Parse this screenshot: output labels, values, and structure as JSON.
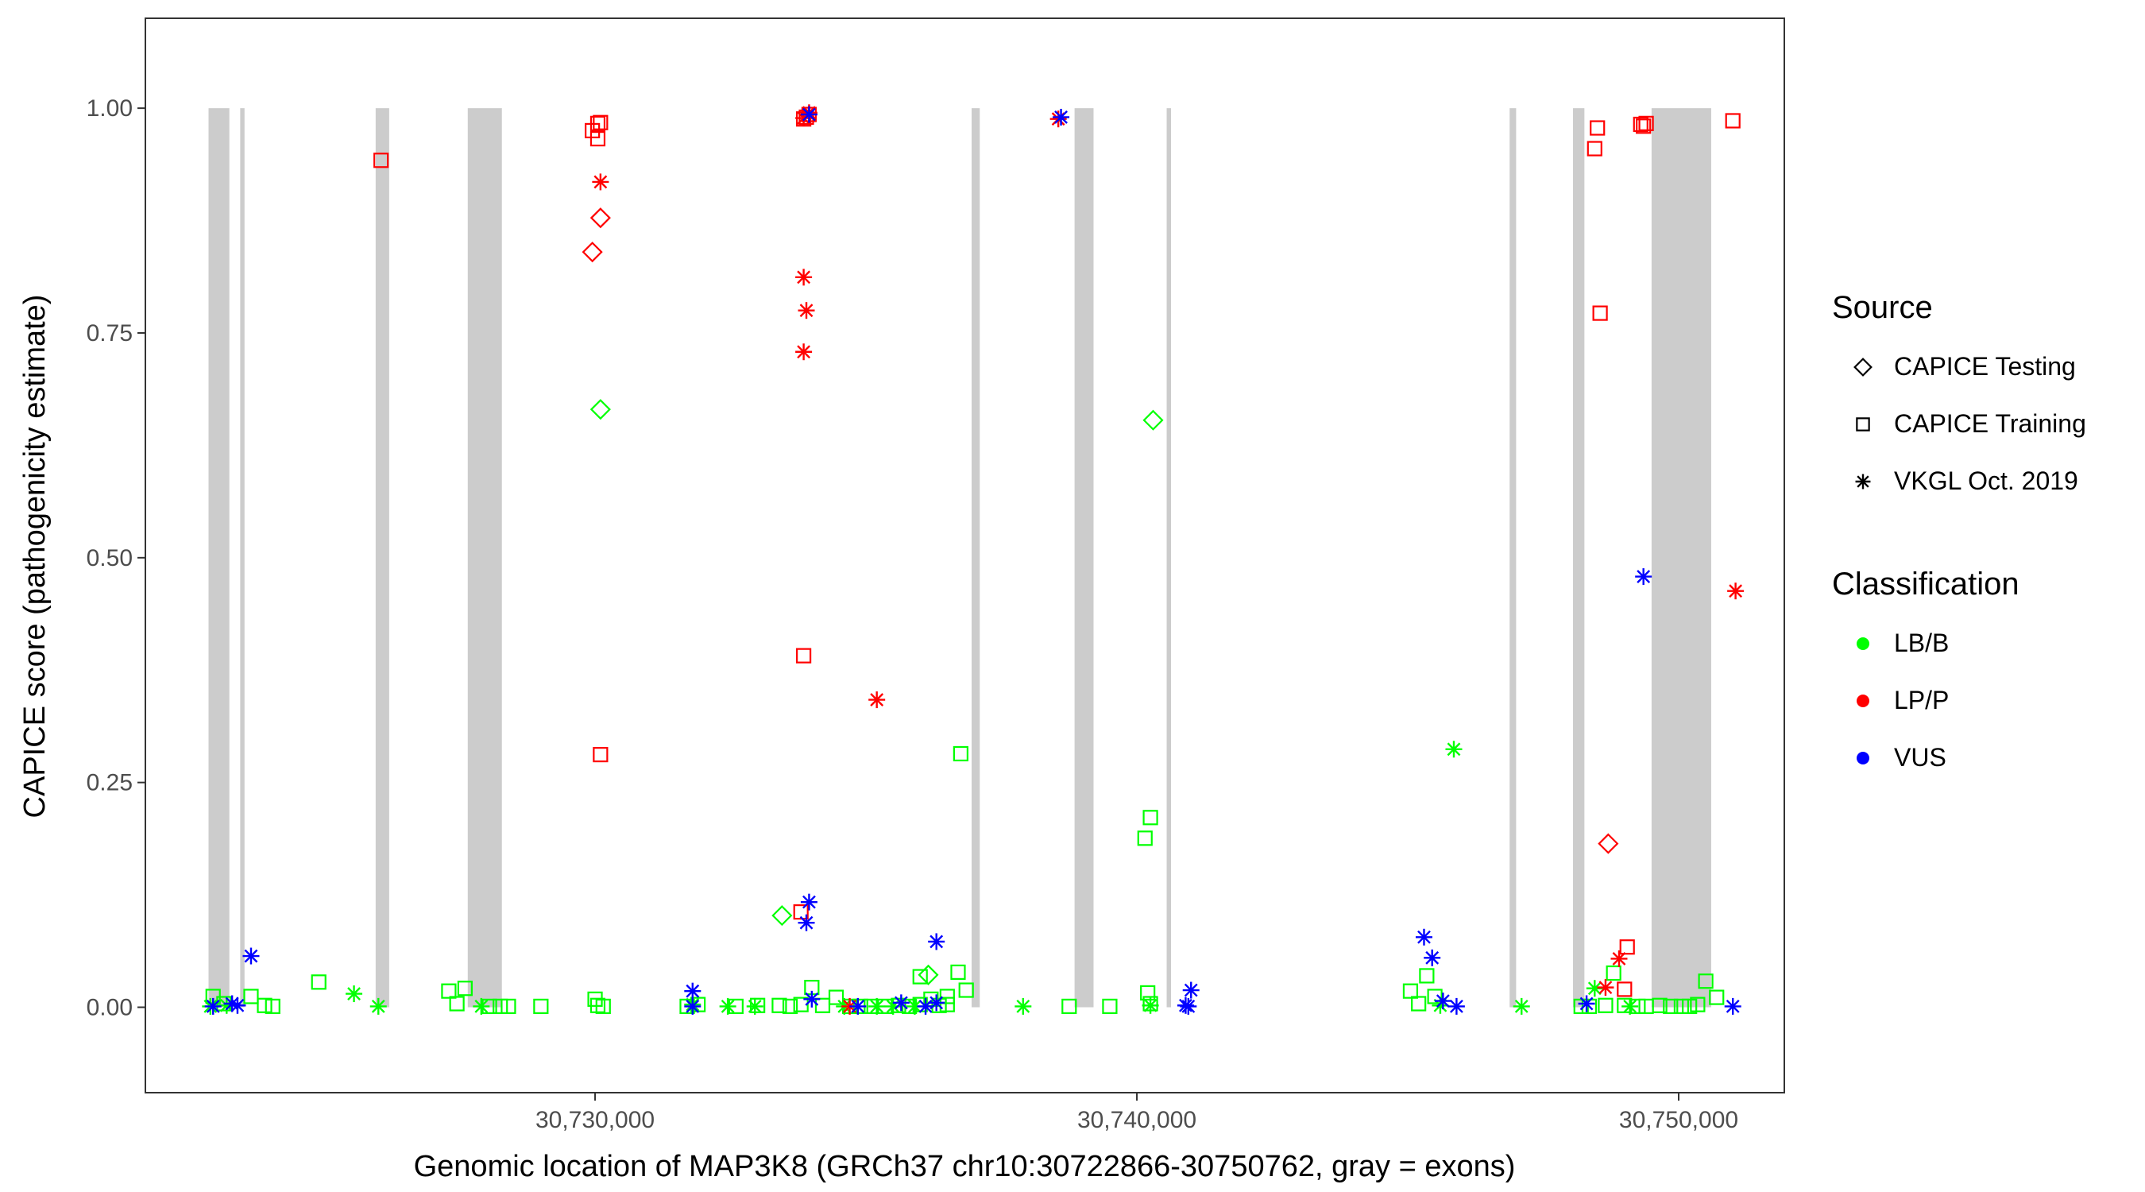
{
  "chart_data": {
    "type": "scatter",
    "title": "",
    "xlabel": "Genomic location of MAP3K8 (GRCh37 chr10:30722866-30750762, gray = exons)",
    "ylabel": "CAPICE score (pathogenicity estimate)",
    "xlim": [
      30721700,
      30751950
    ],
    "ylim": [
      -0.095,
      1.1
    ],
    "x_ticks": [
      {
        "value": 30730000,
        "label": "30,730,000"
      },
      {
        "value": 30740000,
        "label": "30,740,000"
      },
      {
        "value": 30750000,
        "label": "30,750,000"
      }
    ],
    "y_ticks": [
      {
        "value": 0,
        "label": "0.00"
      },
      {
        "value": 0.25,
        "label": "0.25"
      },
      {
        "value": 0.5,
        "label": "0.50"
      },
      {
        "value": 0.75,
        "label": "0.75"
      },
      {
        "value": 1,
        "label": "1.00"
      }
    ],
    "grid": false,
    "legend_position": "right",
    "exons": [
      [
        30722866,
        30723250
      ],
      [
        30723450,
        30723530
      ],
      [
        30725950,
        30726200
      ],
      [
        30727650,
        30728280
      ],
      [
        30736950,
        30737100
      ],
      [
        30738850,
        30739200
      ],
      [
        30740550,
        30740630
      ],
      [
        30746880,
        30747000
      ],
      [
        30748050,
        30748260
      ],
      [
        30749500,
        30750600
      ]
    ],
    "legends": [
      {
        "title": "Source",
        "entries": [
          {
            "label": "CAPICE Testing",
            "shape": "diamond"
          },
          {
            "label": "CAPICE Training",
            "shape": "square"
          },
          {
            "label": "VKGL Oct. 2019",
            "shape": "asterisk"
          }
        ]
      },
      {
        "title": "Classification",
        "entries": [
          {
            "label": "LB/B",
            "color": "#00ff00"
          },
          {
            "label": "LP/P",
            "color": "#ff0000"
          },
          {
            "label": "VUS",
            "color": "#0000ff"
          }
        ]
      }
    ],
    "colors": {
      "LB/B": "#00ff00",
      "LP/P": "#ff0000",
      "VUS": "#0000ff",
      "exon": "#cccccc"
    },
    "series": [
      {
        "name": "CAPICE Testing",
        "classification": "LB/B",
        "shape": "diamond",
        "points": [
          [
            30730100,
            0.665
          ],
          [
            30733450,
            0.102
          ],
          [
            30740300,
            0.653
          ],
          [
            30736150,
            0.036
          ]
        ]
      },
      {
        "name": "CAPICE Testing",
        "classification": "LP/P",
        "shape": "diamond",
        "points": [
          [
            30729950,
            0.84
          ],
          [
            30730100,
            0.878
          ],
          [
            30748700,
            0.182
          ]
        ]
      },
      {
        "name": "CAPICE Training",
        "classification": "LB/B",
        "shape": "square",
        "points": [
          [
            30722950,
            0.012
          ],
          [
            30723150,
            0.004
          ],
          [
            30723650,
            0.012
          ],
          [
            30723900,
            0.002
          ],
          [
            30724050,
            0.001
          ],
          [
            30724900,
            0.028
          ],
          [
            30727300,
            0.018
          ],
          [
            30727450,
            0.004
          ],
          [
            30727600,
            0.021
          ],
          [
            30728050,
            0.001
          ],
          [
            30728250,
            0.001
          ],
          [
            30728400,
            0.001
          ],
          [
            30729000,
            0.001
          ],
          [
            30730000,
            0.009
          ],
          [
            30730050,
            0.002
          ],
          [
            30730150,
            0.001
          ],
          [
            30731700,
            0.001
          ],
          [
            30731900,
            0.003
          ],
          [
            30732600,
            0.001
          ],
          [
            30733000,
            0.002
          ],
          [
            30733400,
            0.002
          ],
          [
            30733600,
            0.001
          ],
          [
            30733800,
            0.003
          ],
          [
            30734000,
            0.022
          ],
          [
            30734200,
            0.002
          ],
          [
            30734450,
            0.011
          ],
          [
            30734700,
            0.001
          ],
          [
            30734900,
            0.001
          ],
          [
            30735100,
            0.001
          ],
          [
            30735350,
            0.001
          ],
          [
            30735600,
            0.002
          ],
          [
            30735800,
            0.001
          ],
          [
            30736000,
            0.003
          ],
          [
            30736200,
            0.009
          ],
          [
            30736350,
            0.002
          ],
          [
            30736000,
            0.034
          ],
          [
            30736500,
            0.012
          ],
          [
            30736700,
            0.039
          ],
          [
            30736750,
            0.282
          ],
          [
            30736850,
            0.019
          ],
          [
            30736500,
            0.003
          ],
          [
            30738750,
            0.001
          ],
          [
            30739500,
            0.001
          ],
          [
            30740150,
            0.188
          ],
          [
            30740250,
            0.211
          ],
          [
            30740200,
            0.016
          ],
          [
            30740250,
            0.004
          ],
          [
            30745050,
            0.018
          ],
          [
            30745200,
            0.004
          ],
          [
            30745350,
            0.035
          ],
          [
            30745500,
            0.012
          ],
          [
            30748200,
            0.001
          ],
          [
            30748350,
            0.001
          ],
          [
            30748650,
            0.002
          ],
          [
            30748800,
            0.038
          ],
          [
            30749000,
            0.002
          ],
          [
            30749250,
            0.001
          ],
          [
            30749400,
            0.001
          ],
          [
            30749650,
            0.002
          ],
          [
            30749850,
            0.001
          ],
          [
            30750050,
            0.001
          ],
          [
            30750200,
            0.001
          ],
          [
            30750350,
            0.003
          ],
          [
            30750500,
            0.029
          ],
          [
            30750700,
            0.011
          ]
        ]
      },
      {
        "name": "CAPICE Training",
        "classification": "LP/P",
        "shape": "square",
        "points": [
          [
            30726050,
            0.942
          ],
          [
            30729950,
            0.975
          ],
          [
            30730050,
            0.983
          ],
          [
            30730100,
            0.984
          ],
          [
            30730050,
            0.966
          ],
          [
            30730100,
            0.281
          ],
          [
            30733850,
            0.391
          ],
          [
            30733800,
            0.106
          ],
          [
            30733850,
            0.988
          ],
          [
            30733900,
            0.99
          ],
          [
            30733950,
            0.993
          ],
          [
            30748450,
            0.955
          ],
          [
            30748500,
            0.978
          ],
          [
            30748550,
            0.772
          ],
          [
            30749300,
            0.982
          ],
          [
            30749350,
            0.98
          ],
          [
            30749400,
            0.983
          ],
          [
            30751000,
            0.986
          ],
          [
            30749050,
            0.067
          ],
          [
            30749000,
            0.02
          ]
        ]
      },
      {
        "name": "VKGL Oct. 2019",
        "classification": "LB/B",
        "shape": "asterisk",
        "points": [
          [
            30722900,
            0.001
          ],
          [
            30723200,
            0.002
          ],
          [
            30725550,
            0.015
          ],
          [
            30726000,
            0.001
          ],
          [
            30727900,
            0.001
          ],
          [
            30731800,
            0.003
          ],
          [
            30732450,
            0.001
          ],
          [
            30732950,
            0.001
          ],
          [
            30734600,
            0.001
          ],
          [
            30735200,
            0.001
          ],
          [
            30735500,
            0.001
          ],
          [
            30735900,
            0.001
          ],
          [
            30737900,
            0.001
          ],
          [
            30740250,
            0.002
          ],
          [
            30745600,
            0.002
          ],
          [
            30745850,
            0.287
          ],
          [
            30747100,
            0.001
          ],
          [
            30748450,
            0.021
          ],
          [
            30749100,
            0.001
          ]
        ]
      },
      {
        "name": "VKGL Oct. 2019",
        "classification": "LP/P",
        "shape": "asterisk",
        "points": [
          [
            30730100,
            0.918
          ],
          [
            30733850,
            0.812
          ],
          [
            30733900,
            0.775
          ],
          [
            30733850,
            0.729
          ],
          [
            30733850,
            0.989
          ],
          [
            30733950,
            0.995
          ],
          [
            30735200,
            0.342
          ],
          [
            30734700,
            0.001
          ],
          [
            30738550,
            0.988
          ],
          [
            30748650,
            0.022
          ],
          [
            30748900,
            0.054
          ],
          [
            30751050,
            0.463
          ]
        ]
      },
      {
        "name": "VKGL Oct. 2019",
        "classification": "VUS",
        "shape": "asterisk",
        "points": [
          [
            30723650,
            0.057
          ],
          [
            30722950,
            0.001
          ],
          [
            30723300,
            0.004
          ],
          [
            30723400,
            0.002
          ],
          [
            30731800,
            0.018
          ],
          [
            30731800,
            0.001
          ],
          [
            30733900,
            0.094
          ],
          [
            30733950,
            0.117
          ],
          [
            30734000,
            0.009
          ],
          [
            30733950,
            0.993
          ],
          [
            30734850,
            0.001
          ],
          [
            30735650,
            0.005
          ],
          [
            30736100,
            0.001
          ],
          [
            30736300,
            0.073
          ],
          [
            30736300,
            0.005
          ],
          [
            30738600,
            0.99
          ],
          [
            30740900,
            0.002
          ],
          [
            30741000,
            0.019
          ],
          [
            30740950,
            0.001
          ],
          [
            30745300,
            0.078
          ],
          [
            30745450,
            0.055
          ],
          [
            30745650,
            0.007
          ],
          [
            30745900,
            0.001
          ],
          [
            30748300,
            0.004
          ],
          [
            30749350,
            0.479
          ],
          [
            30751000,
            0.001
          ]
        ]
      }
    ]
  }
}
